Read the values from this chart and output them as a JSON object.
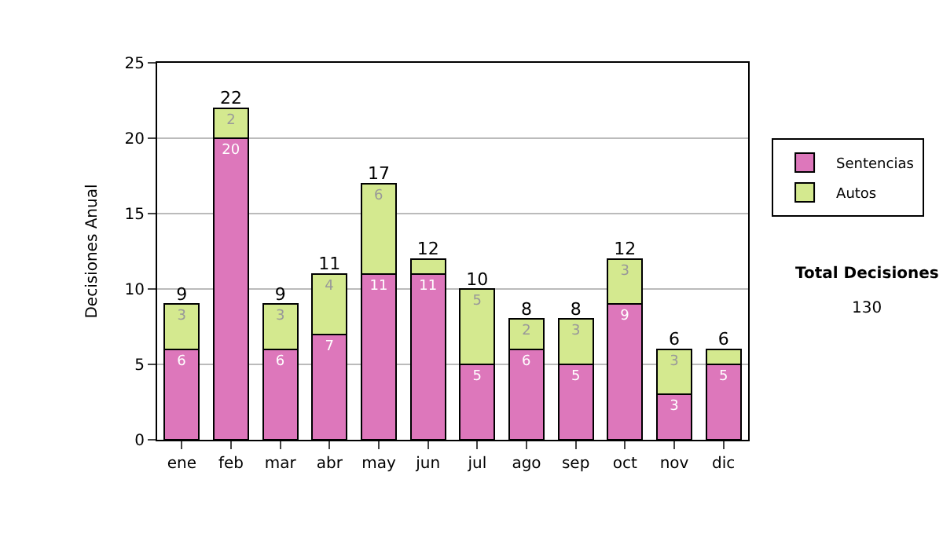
{
  "chart_data": {
    "type": "bar",
    "stacked": true,
    "ylabel": "Decisiones Anual",
    "categories": [
      "ene",
      "feb",
      "mar",
      "abr",
      "may",
      "jun",
      "jul",
      "ago",
      "sep",
      "oct",
      "nov",
      "dic"
    ],
    "series": [
      {
        "name": "Sentencias",
        "color": "#dd77bb",
        "values": [
          6,
          20,
          6,
          7,
          11,
          11,
          5,
          6,
          5,
          9,
          3,
          5
        ],
        "value_labels": [
          "6",
          "20",
          "6",
          "7",
          "11",
          "11",
          "5",
          "6",
          "5",
          "9",
          "3",
          "5"
        ]
      },
      {
        "name": "Autos",
        "color": "#d4e98f",
        "values": [
          3,
          2,
          3,
          4,
          6,
          1,
          5,
          2,
          3,
          3,
          3,
          1
        ],
        "value_labels": [
          "3",
          "2",
          "3",
          "4",
          "6",
          null,
          "5",
          "2",
          "3",
          "3",
          "3",
          null
        ]
      }
    ],
    "totals": [
      "9",
      "22",
      "9",
      "11",
      "17",
      "12",
      "10",
      "8",
      "8",
      "12",
      "6",
      "6"
    ],
    "ylim": [
      0,
      25
    ],
    "yticks": [
      0,
      5,
      10,
      15,
      20,
      25
    ],
    "grid": "y",
    "legend": "right",
    "annotations": [
      "Total Decisiones",
      "130"
    ]
  }
}
